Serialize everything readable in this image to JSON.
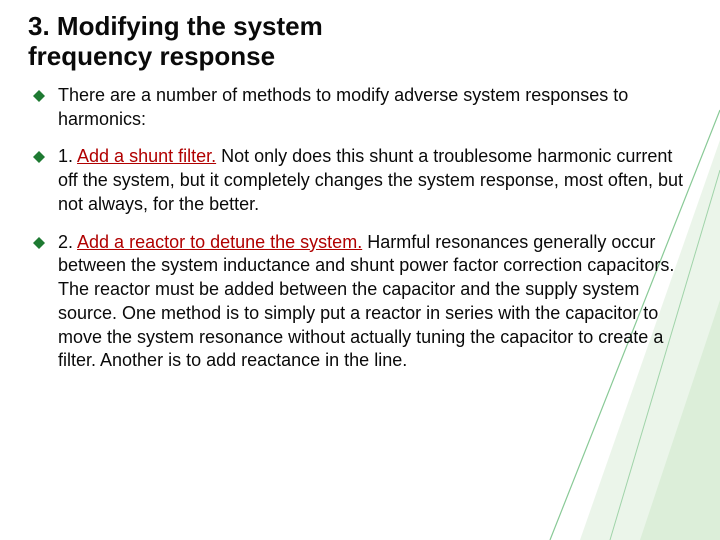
{
  "colors": {
    "title": "#0a0a0a",
    "body": "#0a0a0a",
    "emphasis": "#b00000",
    "bullet": "#1e7a32",
    "deco_fill": "#e8f3e6",
    "deco_line": "#57b36a",
    "background": "#ffffff"
  },
  "title": {
    "text": "3. Modifying the system frequency response",
    "fontsize": 26,
    "fontweight": "bold"
  },
  "body_fontsize": 18,
  "bullets": [
    {
      "segments": [
        {
          "text": "There are a number of methods to modify adverse system responses to harmonics:",
          "emphasis": false
        }
      ]
    },
    {
      "segments": [
        {
          "text": "1. ",
          "emphasis": false
        },
        {
          "text": "Add a shunt filter.",
          "emphasis": true
        },
        {
          "text": " Not only does this shunt a troublesome harmonic current off the system, but it completely changes the system response, most often, but not always, for the better.",
          "emphasis": false
        }
      ]
    },
    {
      "segments": [
        {
          "text": "2. ",
          "emphasis": false
        },
        {
          "text": "Add a reactor to detune the system.",
          "emphasis": true
        },
        {
          "text": " Harmful resonances generally occur between the system inductance and shunt power factor correction capacitors. The reactor must be added between the capacitor and the supply system source. One method is to simply put a reactor in series with the capacitor to move the system resonance without actually tuning the capacitor to create a filter. Another is to add reactance in the line.",
          "emphasis": false
        }
      ]
    }
  ]
}
